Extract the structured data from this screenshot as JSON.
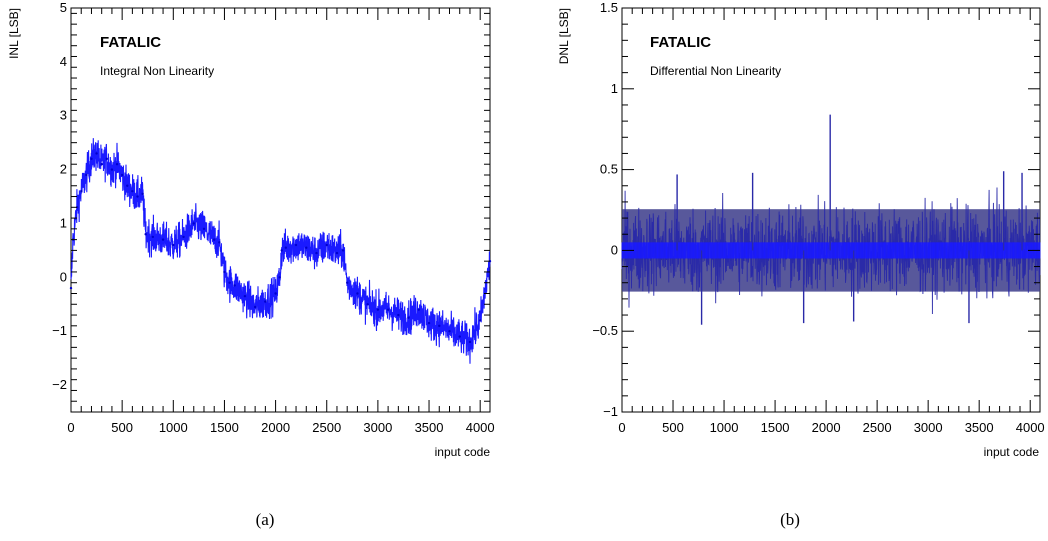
{
  "chart_data": [
    {
      "type": "line",
      "title": "FATALIC",
      "subtitle": "Integral Non Linearity",
      "xlabel": "input code",
      "ylabel": "INL [LSB]",
      "xlim": [
        0,
        4096
      ],
      "ylim": [
        -2.5,
        5
      ],
      "x_ticks": [
        0,
        500,
        1000,
        1500,
        2000,
        2500,
        3000,
        3500,
        4000
      ],
      "y_ticks": [
        -2,
        -1,
        0,
        1,
        2,
        3,
        4,
        5
      ],
      "grid": false,
      "color": "#1a1aff",
      "series": [
        {
          "x": [
            0,
            20,
            60,
            100,
            150,
            200,
            250,
            300,
            350,
            400,
            450,
            500,
            550,
            600,
            650,
            700,
            730,
            800,
            900,
            1000,
            1100,
            1200,
            1300,
            1400,
            1450,
            1500,
            1550,
            1600,
            1700,
            1800,
            1900,
            2000,
            2040,
            2060,
            2100,
            2200,
            2300,
            2400,
            2500,
            2600,
            2660,
            2700,
            2800,
            2900,
            3000,
            3100,
            3200,
            3300,
            3400,
            3500,
            3600,
            3700,
            3800,
            3900,
            4000,
            4096
          ],
          "y": [
            -0.2,
            0.7,
            1.3,
            1.6,
            1.9,
            2.2,
            2.3,
            2.1,
            2.2,
            2.0,
            2.1,
            1.9,
            1.7,
            1.6,
            1.5,
            1.55,
            0.8,
            0.75,
            0.7,
            0.6,
            0.75,
            1.0,
            0.9,
            0.7,
            0.65,
            0.1,
            -0.1,
            -0.15,
            -0.35,
            -0.55,
            -0.45,
            -0.3,
            0.0,
            0.5,
            0.55,
            0.6,
            0.55,
            0.45,
            0.6,
            0.45,
            0.5,
            -0.1,
            -0.3,
            -0.5,
            -0.6,
            -0.6,
            -0.7,
            -0.75,
            -0.6,
            -0.85,
            -0.9,
            -1.0,
            -1.1,
            -1.2,
            -0.8,
            0.3
          ]
        }
      ]
    },
    {
      "type": "line",
      "title": "FATALIC",
      "subtitle": "Differential Non Linearity",
      "xlabel": "input code",
      "ylabel": "DNL [LSB]",
      "xlim": [
        0,
        4096
      ],
      "ylim": [
        -1,
        1.5
      ],
      "x_ticks": [
        0,
        500,
        1000,
        1500,
        2000,
        2500,
        3000,
        3500,
        4000
      ],
      "y_ticks": [
        -1,
        -0.5,
        0,
        0.5,
        1,
        1.5
      ],
      "grid": false,
      "color": "#1a1aff",
      "envelope": {
        "upper": 0.3,
        "lower": -0.3
      },
      "spikes": [
        {
          "x": 2040,
          "y": 0.84
        },
        {
          "x": 540,
          "y": 0.47
        },
        {
          "x": 1280,
          "y": 0.48
        },
        {
          "x": 3740,
          "y": 0.49
        },
        {
          "x": 3920,
          "y": 0.48
        },
        {
          "x": 780,
          "y": -0.46
        },
        {
          "x": 1780,
          "y": -0.45
        },
        {
          "x": 2270,
          "y": -0.44
        },
        {
          "x": 3400,
          "y": -0.45
        }
      ]
    }
  ],
  "captions": [
    "(a)",
    "(b)"
  ]
}
